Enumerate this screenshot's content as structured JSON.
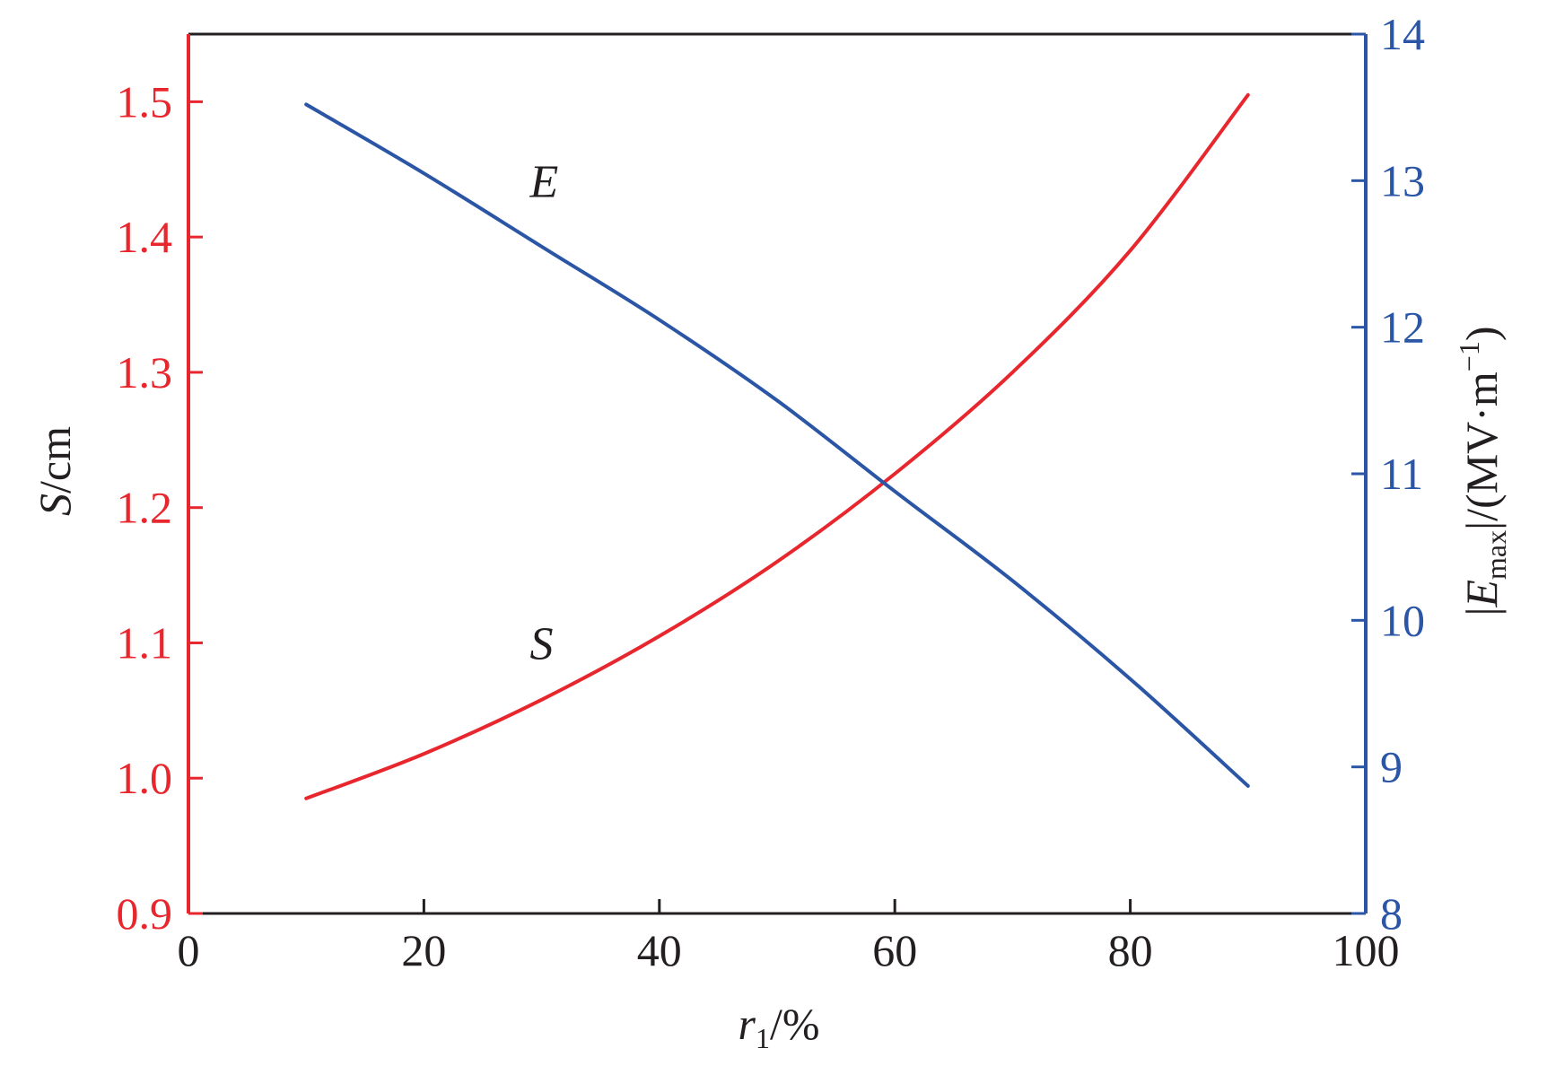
{
  "chart_data": {
    "type": "line",
    "x_axis": {
      "label": {
        "var": "r",
        "sub": "1",
        "unit": "/%"
      },
      "range": [
        0,
        100
      ],
      "ticks": [
        "0",
        "20",
        "40",
        "60",
        "80",
        "100"
      ]
    },
    "y_axis_left": {
      "label": {
        "var": "S",
        "unit": "/cm"
      },
      "range": [
        0.9,
        1.55
      ],
      "ticks": [
        "0.9",
        "1.0",
        "1.1",
        "1.2",
        "1.3",
        "1.4",
        "1.5"
      ],
      "color": "#e8262d"
    },
    "y_axis_right": {
      "label": {
        "open": "|",
        "var": "E",
        "sub": "max",
        "close": "|/(MV·m",
        "sup": "−1",
        "end": ")"
      },
      "range": [
        8,
        14
      ],
      "ticks": [
        "8",
        "9",
        "10",
        "11",
        "12",
        "13",
        "14"
      ],
      "color": "#2b55a5"
    },
    "series": [
      {
        "name": "S",
        "axis": "left",
        "color": "#e8262d",
        "x": [
          10,
          20,
          30,
          40,
          50,
          60,
          70,
          80,
          90
        ],
        "y": [
          0.985,
          1.018,
          1.058,
          1.105,
          1.16,
          1.225,
          1.3,
          1.39,
          1.505
        ]
      },
      {
        "name": "E",
        "axis": "right",
        "color": "#2b55a5",
        "x": [
          10,
          20,
          30,
          40,
          50,
          60,
          70,
          80,
          90
        ],
        "y": [
          13.52,
          13.05,
          12.55,
          12.05,
          11.5,
          10.88,
          10.27,
          9.6,
          8.87
        ]
      }
    ],
    "annotations": [
      {
        "text": "E",
        "x": 29,
        "axis": "right",
        "y": 13.0
      },
      {
        "text": "S",
        "x": 29,
        "axis": "left",
        "y": 1.1
      }
    ],
    "grid": false,
    "legend": "none"
  }
}
